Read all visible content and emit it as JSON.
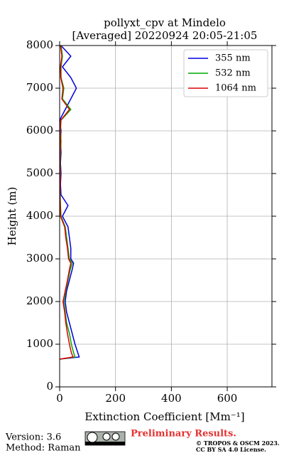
{
  "chart_data": {
    "type": "line",
    "title": "pollyxt_cpv at Mindelo",
    "subtitle": "[Averaged] 20220924 20:05-21:05",
    "x_label": "Extinction Coefficient [Mm⁻¹]",
    "y_label": "Height (m)",
    "y": [
      650,
      700,
      800,
      1000,
      1250,
      1500,
      1750,
      2000,
      2250,
      2500,
      2750,
      2900,
      3000,
      3250,
      3500,
      3750,
      4000,
      4250,
      4500,
      4750,
      5000,
      5250,
      5500,
      5750,
      6000,
      6250,
      6500,
      6750,
      7000,
      7250,
      7500,
      7750,
      8000
    ],
    "series": [
      {
        "name": "355 nm",
        "color": "#0000dd",
        "values": [
          0,
          70,
          65,
          55,
          45,
          35,
          25,
          20,
          25,
          35,
          45,
          50,
          40,
          40,
          35,
          30,
          10,
          30,
          5,
          3,
          5,
          3,
          5,
          3,
          5,
          0,
          20,
          40,
          60,
          40,
          10,
          40,
          5
        ]
      },
      {
        "name": "532 nm",
        "color": "#00aa00",
        "values": [
          0,
          55,
          50,
          42,
          35,
          25,
          20,
          15,
          22,
          30,
          38,
          45,
          35,
          30,
          25,
          20,
          5,
          3,
          2,
          2,
          3,
          2,
          3,
          5,
          3,
          5,
          40,
          10,
          15,
          5,
          5,
          10,
          5
        ]
      },
      {
        "name": "1064 nm",
        "color": "#dd0000",
        "values": [
          0,
          48,
          42,
          35,
          28,
          22,
          18,
          12,
          20,
          28,
          35,
          40,
          32,
          28,
          22,
          18,
          3,
          2,
          1,
          2,
          2,
          1,
          2,
          3,
          2,
          4,
          35,
          8,
          12,
          4,
          3,
          8,
          3
        ]
      }
    ],
    "xlim": [
      0,
      760
    ],
    "xticks": [
      0,
      200,
      400,
      600
    ],
    "ylim": [
      0,
      8000
    ],
    "yticks": [
      0,
      1000,
      2000,
      3000,
      4000,
      5000,
      6000,
      7000,
      8000
    ],
    "grid": true,
    "legend": "upper right"
  },
  "footer": {
    "version": "Version: 3.6",
    "method": "Method: Raman",
    "preliminary": "Preliminary Results.",
    "copyright": "© TROPOS & OSCM 2023.",
    "license": "CC BY SA 4.0 License."
  }
}
